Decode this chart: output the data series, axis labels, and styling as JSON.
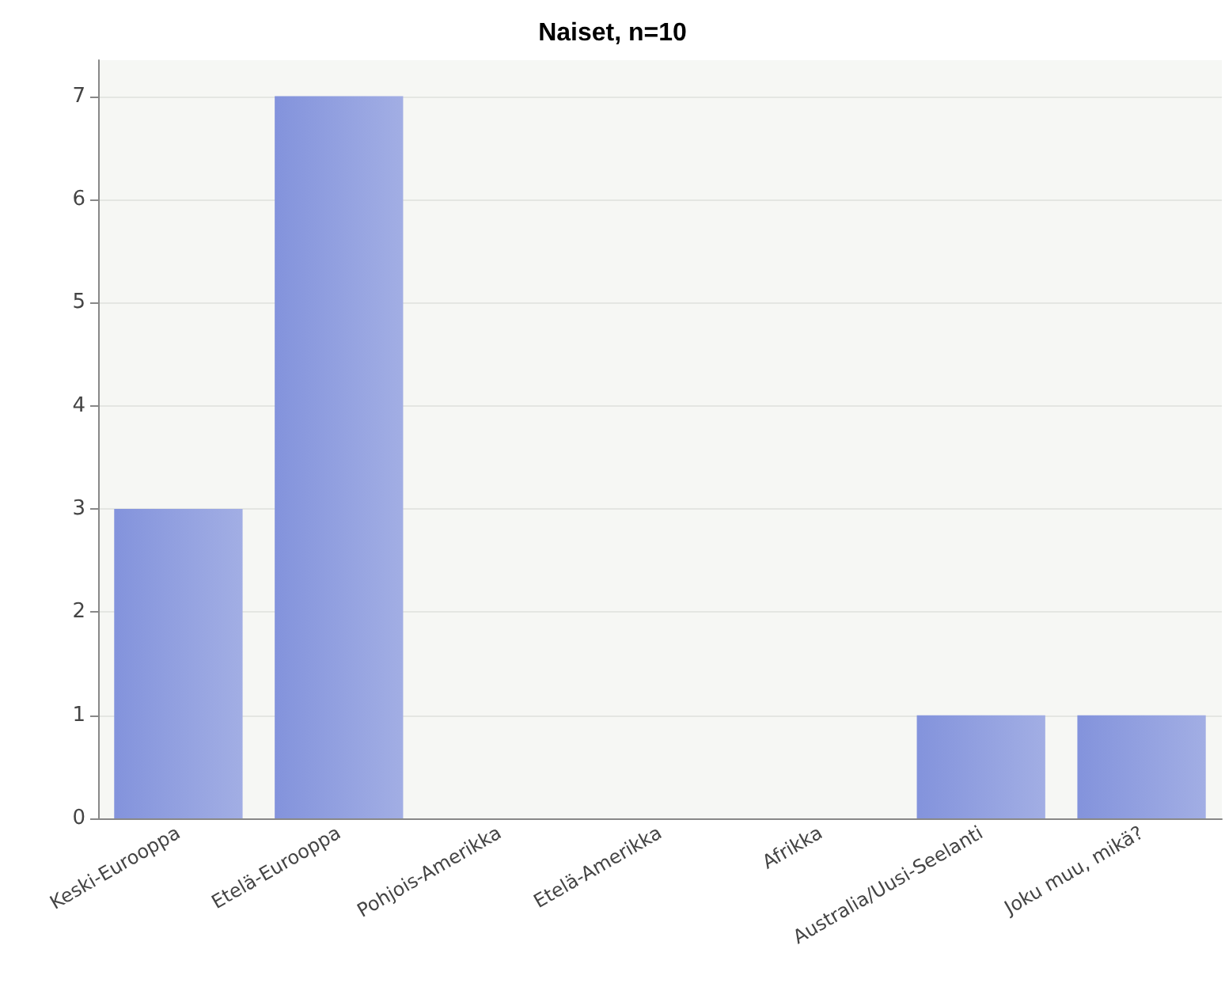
{
  "chart_data": {
    "type": "bar",
    "title": "Naiset, n=10",
    "categories": [
      "Keski-Eurooppa",
      "Etelä-Eurooppa",
      "Pohjois-Amerikka",
      "Etelä-Amerikka",
      "Afrikka",
      "Australia/Uusi-Seelanti",
      "Joku muu, mikä?"
    ],
    "values": [
      3,
      7,
      0,
      0,
      0,
      1,
      1
    ],
    "color": "#8393dc",
    "ylim": [
      0,
      7.35
    ],
    "yticks": [
      0,
      1,
      2,
      3,
      4,
      5,
      6,
      7
    ],
    "grid": "y"
  }
}
